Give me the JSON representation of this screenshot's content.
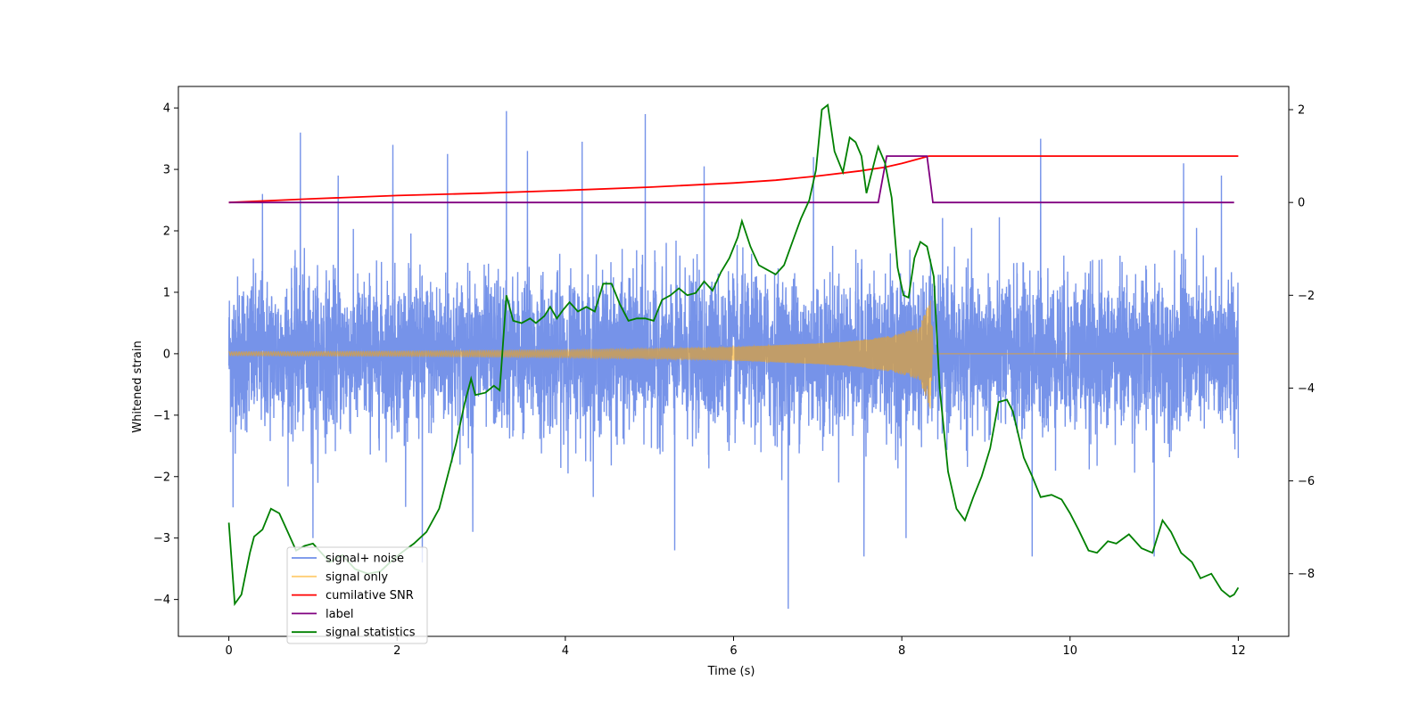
{
  "chart_data": {
    "type": "line",
    "title": "",
    "xlabel": "Time (s)",
    "ylabel": "Whitened strain",
    "y2label": "",
    "xlim": [
      -0.6,
      12.6
    ],
    "ylim": [
      -4.6,
      4.35
    ],
    "y2lim": [
      -9.35,
      2.5
    ],
    "x_ticks": [
      0,
      2,
      4,
      6,
      8,
      10,
      12
    ],
    "y_ticks": [
      -4,
      -3,
      -2,
      -1,
      0,
      1,
      2,
      3,
      4
    ],
    "y2_ticks": [
      -8,
      -6,
      -4,
      -2,
      0,
      2
    ],
    "grid": false,
    "legend_position": "lower-left",
    "series": [
      {
        "name": "signal+ noise",
        "axis": "left",
        "color": "#4169e1",
        "kind": "noise_envelope",
        "typical_range": [
          -1.5,
          1.5
        ],
        "peaks": [
          {
            "x": 0.4,
            "y": 2.6
          },
          {
            "x": 0.85,
            "y": 3.6
          },
          {
            "x": 1.3,
            "y": 2.9
          },
          {
            "x": 1.95,
            "y": 3.4
          },
          {
            "x": 2.6,
            "y": 3.25
          },
          {
            "x": 3.3,
            "y": 3.95
          },
          {
            "x": 3.55,
            "y": 3.3
          },
          {
            "x": 4.2,
            "y": 3.45
          },
          {
            "x": 4.95,
            "y": 3.9
          },
          {
            "x": 5.65,
            "y": 3.05
          },
          {
            "x": 6.95,
            "y": 3.2
          },
          {
            "x": 9.65,
            "y": 3.5
          },
          {
            "x": 11.35,
            "y": 3.1
          },
          {
            "x": 11.8,
            "y": 2.9
          }
        ],
        "troughs": [
          {
            "x": 0.05,
            "y": -2.5
          },
          {
            "x": 1.0,
            "y": -3.0
          },
          {
            "x": 2.3,
            "y": -3.4
          },
          {
            "x": 2.9,
            "y": -2.9
          },
          {
            "x": 5.3,
            "y": -3.2
          },
          {
            "x": 6.65,
            "y": -4.15
          },
          {
            "x": 7.55,
            "y": -3.3
          },
          {
            "x": 8.05,
            "y": -3.0
          },
          {
            "x": 9.55,
            "y": -3.3
          },
          {
            "x": 11.0,
            "y": -3.3
          }
        ]
      },
      {
        "name": "signal only",
        "axis": "left",
        "color": "#ffa500",
        "kind": "chirp",
        "envelope": [
          [
            0,
            0.03
          ],
          [
            1,
            0.035
          ],
          [
            2,
            0.04
          ],
          [
            3,
            0.05
          ],
          [
            4,
            0.06
          ],
          [
            5,
            0.08
          ],
          [
            6,
            0.11
          ],
          [
            7,
            0.17
          ],
          [
            7.5,
            0.22
          ],
          [
            7.9,
            0.3
          ],
          [
            8.2,
            0.42
          ],
          [
            8.3,
            0.75
          ],
          [
            8.35,
            0.95
          ],
          [
            8.37,
            0.0
          ],
          [
            12,
            0.0
          ]
        ]
      },
      {
        "name": "cumilative SNR",
        "axis": "right",
        "color": "#ff0000",
        "points": [
          [
            0,
            0.0
          ],
          [
            1,
            0.08
          ],
          [
            2,
            0.15
          ],
          [
            3,
            0.2
          ],
          [
            4,
            0.26
          ],
          [
            5,
            0.33
          ],
          [
            6,
            0.42
          ],
          [
            6.5,
            0.48
          ],
          [
            7,
            0.57
          ],
          [
            7.5,
            0.68
          ],
          [
            7.8,
            0.76
          ],
          [
            8.0,
            0.84
          ],
          [
            8.2,
            0.94
          ],
          [
            8.32,
            1.0
          ],
          [
            12,
            1.0
          ]
        ]
      },
      {
        "name": "label",
        "axis": "right",
        "color": "#800080",
        "points": [
          [
            0,
            0.0
          ],
          [
            7.72,
            0.0
          ],
          [
            7.82,
            1.0
          ],
          [
            8.3,
            1.0
          ],
          [
            8.35,
            0.3
          ],
          [
            8.37,
            0.0
          ],
          [
            11.95,
            0.0
          ]
        ]
      },
      {
        "name": "signal statistics",
        "axis": "right",
        "color": "#008000",
        "points": [
          [
            0,
            -6.9
          ],
          [
            0.07,
            -8.65
          ],
          [
            0.15,
            -8.45
          ],
          [
            0.25,
            -7.55
          ],
          [
            0.3,
            -7.2
          ],
          [
            0.4,
            -7.05
          ],
          [
            0.5,
            -6.6
          ],
          [
            0.6,
            -6.7
          ],
          [
            0.7,
            -7.1
          ],
          [
            0.8,
            -7.5
          ],
          [
            0.9,
            -7.4
          ],
          [
            1.0,
            -7.35
          ],
          [
            1.1,
            -7.55
          ],
          [
            1.2,
            -7.75
          ],
          [
            1.35,
            -7.6
          ],
          [
            1.5,
            -7.9
          ],
          [
            1.65,
            -8.0
          ],
          [
            1.8,
            -7.95
          ],
          [
            1.95,
            -7.7
          ],
          [
            2.05,
            -7.55
          ],
          [
            2.2,
            -7.35
          ],
          [
            2.35,
            -7.1
          ],
          [
            2.5,
            -6.6
          ],
          [
            2.6,
            -5.9
          ],
          [
            2.7,
            -5.2
          ],
          [
            2.8,
            -4.35
          ],
          [
            2.88,
            -3.8
          ],
          [
            2.93,
            -4.15
          ],
          [
            3.05,
            -4.1
          ],
          [
            3.15,
            -3.95
          ],
          [
            3.22,
            -4.05
          ],
          [
            3.3,
            -2.0
          ],
          [
            3.38,
            -2.55
          ],
          [
            3.48,
            -2.6
          ],
          [
            3.58,
            -2.5
          ],
          [
            3.65,
            -2.6
          ],
          [
            3.75,
            -2.45
          ],
          [
            3.82,
            -2.25
          ],
          [
            3.9,
            -2.5
          ],
          [
            3.98,
            -2.3
          ],
          [
            4.05,
            -2.15
          ],
          [
            4.15,
            -2.35
          ],
          [
            4.25,
            -2.25
          ],
          [
            4.35,
            -2.35
          ],
          [
            4.45,
            -1.75
          ],
          [
            4.55,
            -1.75
          ],
          [
            4.65,
            -2.2
          ],
          [
            4.75,
            -2.55
          ],
          [
            4.85,
            -2.5
          ],
          [
            4.95,
            -2.5
          ],
          [
            5.05,
            -2.55
          ],
          [
            5.15,
            -2.1
          ],
          [
            5.25,
            -2.0
          ],
          [
            5.35,
            -1.85
          ],
          [
            5.45,
            -2.0
          ],
          [
            5.55,
            -1.95
          ],
          [
            5.65,
            -1.7
          ],
          [
            5.75,
            -1.9
          ],
          [
            5.85,
            -1.5
          ],
          [
            5.95,
            -1.2
          ],
          [
            6.05,
            -0.75
          ],
          [
            6.1,
            -0.4
          ],
          [
            6.2,
            -0.95
          ],
          [
            6.3,
            -1.35
          ],
          [
            6.4,
            -1.45
          ],
          [
            6.5,
            -1.55
          ],
          [
            6.6,
            -1.35
          ],
          [
            6.65,
            -1.1
          ],
          [
            6.75,
            -0.6
          ],
          [
            6.8,
            -0.35
          ],
          [
            6.9,
            0.05
          ],
          [
            6.98,
            0.7
          ],
          [
            7.05,
            2.0
          ],
          [
            7.12,
            2.1
          ],
          [
            7.2,
            1.1
          ],
          [
            7.3,
            0.65
          ],
          [
            7.38,
            1.4
          ],
          [
            7.45,
            1.3
          ],
          [
            7.52,
            1.0
          ],
          [
            7.58,
            0.2
          ],
          [
            7.65,
            0.7
          ],
          [
            7.72,
            1.2
          ],
          [
            7.8,
            0.85
          ],
          [
            7.88,
            0.1
          ],
          [
            7.95,
            -1.4
          ],
          [
            8.02,
            -2.0
          ],
          [
            8.08,
            -2.05
          ],
          [
            8.15,
            -1.2
          ],
          [
            8.22,
            -0.85
          ],
          [
            8.3,
            -0.95
          ],
          [
            8.38,
            -1.6
          ],
          [
            8.45,
            -4.0
          ],
          [
            8.55,
            -5.8
          ],
          [
            8.65,
            -6.6
          ],
          [
            8.75,
            -6.85
          ],
          [
            8.85,
            -6.35
          ],
          [
            8.95,
            -5.9
          ],
          [
            9.05,
            -5.3
          ],
          [
            9.15,
            -4.3
          ],
          [
            9.25,
            -4.25
          ],
          [
            9.32,
            -4.5
          ],
          [
            9.45,
            -5.5
          ],
          [
            9.55,
            -5.9
          ],
          [
            9.65,
            -6.35
          ],
          [
            9.78,
            -6.3
          ],
          [
            9.9,
            -6.4
          ],
          [
            10.0,
            -6.7
          ],
          [
            10.1,
            -7.05
          ],
          [
            10.22,
            -7.5
          ],
          [
            10.32,
            -7.55
          ],
          [
            10.45,
            -7.3
          ],
          [
            10.55,
            -7.35
          ],
          [
            10.7,
            -7.15
          ],
          [
            10.85,
            -7.45
          ],
          [
            10.98,
            -7.55
          ],
          [
            11.1,
            -6.85
          ],
          [
            11.2,
            -7.1
          ],
          [
            11.32,
            -7.55
          ],
          [
            11.45,
            -7.75
          ],
          [
            11.55,
            -8.1
          ],
          [
            11.68,
            -8.0
          ],
          [
            11.8,
            -8.35
          ],
          [
            11.9,
            -8.5
          ],
          [
            11.95,
            -8.45
          ],
          [
            12.0,
            -8.3
          ]
        ]
      }
    ]
  }
}
